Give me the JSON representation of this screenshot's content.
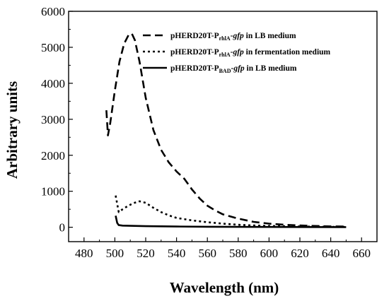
{
  "chart_data": {
    "type": "line",
    "title": "",
    "xlabel": "Wavelength (nm)",
    "ylabel": "Arbitrary units",
    "xlim": [
      470,
      670
    ],
    "ylim": [
      -400,
      6000
    ],
    "x_ticks": [
      480,
      500,
      520,
      540,
      560,
      580,
      600,
      620,
      640,
      660
    ],
    "y_ticks": [
      0,
      1000,
      2000,
      3000,
      4000,
      5000,
      6000
    ],
    "grid": false,
    "legend_position": "top-right",
    "series": [
      {
        "name_parts": [
          {
            "text": "pHERD20T-P",
            "style": "normal"
          },
          {
            "text": "rhlA",
            "style": "sub"
          },
          {
            "text": "-",
            "style": "normal"
          },
          {
            "text": "gfp",
            "style": "italic"
          },
          {
            "text": " in LB medium",
            "style": "normal"
          }
        ],
        "line_style": "dashed",
        "color": "#000000",
        "points": [
          [
            494.5,
            3250
          ],
          [
            495.5,
            2550
          ],
          [
            497,
            2900
          ],
          [
            500,
            3800
          ],
          [
            503,
            4600
          ],
          [
            506,
            5100
          ],
          [
            509,
            5350
          ],
          [
            511,
            5380
          ],
          [
            513,
            5200
          ],
          [
            516,
            4600
          ],
          [
            520,
            3600
          ],
          [
            525,
            2700
          ],
          [
            530,
            2150
          ],
          [
            535,
            1800
          ],
          [
            540,
            1550
          ],
          [
            545,
            1350
          ],
          [
            550,
            1050
          ],
          [
            555,
            800
          ],
          [
            560,
            600
          ],
          [
            565,
            470
          ],
          [
            570,
            360
          ],
          [
            580,
            240
          ],
          [
            590,
            150
          ],
          [
            600,
            100
          ],
          [
            610,
            70
          ],
          [
            620,
            50
          ],
          [
            630,
            35
          ],
          [
            640,
            25
          ],
          [
            650,
            20
          ]
        ]
      },
      {
        "name_parts": [
          {
            "text": "pHERD20T-P",
            "style": "normal"
          },
          {
            "text": "rhlA",
            "style": "sub"
          },
          {
            "text": "-",
            "style": "normal"
          },
          {
            "text": "gfp",
            "style": "italic"
          },
          {
            "text": " in fermentation medium",
            "style": "normal"
          }
        ],
        "line_style": "dotted",
        "color": "#000000",
        "points": [
          [
            500.5,
            880
          ],
          [
            501.5,
            650
          ],
          [
            502.5,
            420
          ],
          [
            505,
            500
          ],
          [
            508,
            580
          ],
          [
            512,
            670
          ],
          [
            516,
            720
          ],
          [
            520,
            680
          ],
          [
            525,
            540
          ],
          [
            530,
            420
          ],
          [
            535,
            330
          ],
          [
            540,
            260
          ],
          [
            550,
            190
          ],
          [
            560,
            140
          ],
          [
            570,
            100
          ],
          [
            580,
            70
          ],
          [
            590,
            50
          ],
          [
            600,
            35
          ],
          [
            620,
            20
          ],
          [
            640,
            12
          ],
          [
            650,
            10
          ]
        ]
      },
      {
        "name_parts": [
          {
            "text": "pHERD20T-P",
            "style": "normal"
          },
          {
            "text": "BAD",
            "style": "sub"
          },
          {
            "text": "-",
            "style": "normal"
          },
          {
            "text": "gfp",
            "style": "italic"
          },
          {
            "text": " in LB medium",
            "style": "normal"
          }
        ],
        "line_style": "solid",
        "color": "#000000",
        "points": [
          [
            500.5,
            320
          ],
          [
            501.5,
            120
          ],
          [
            502.5,
            60
          ],
          [
            505,
            45
          ],
          [
            520,
            30
          ],
          [
            540,
            20
          ],
          [
            560,
            14
          ],
          [
            580,
            10
          ],
          [
            600,
            8
          ],
          [
            620,
            6
          ],
          [
            650,
            5
          ]
        ]
      }
    ]
  }
}
